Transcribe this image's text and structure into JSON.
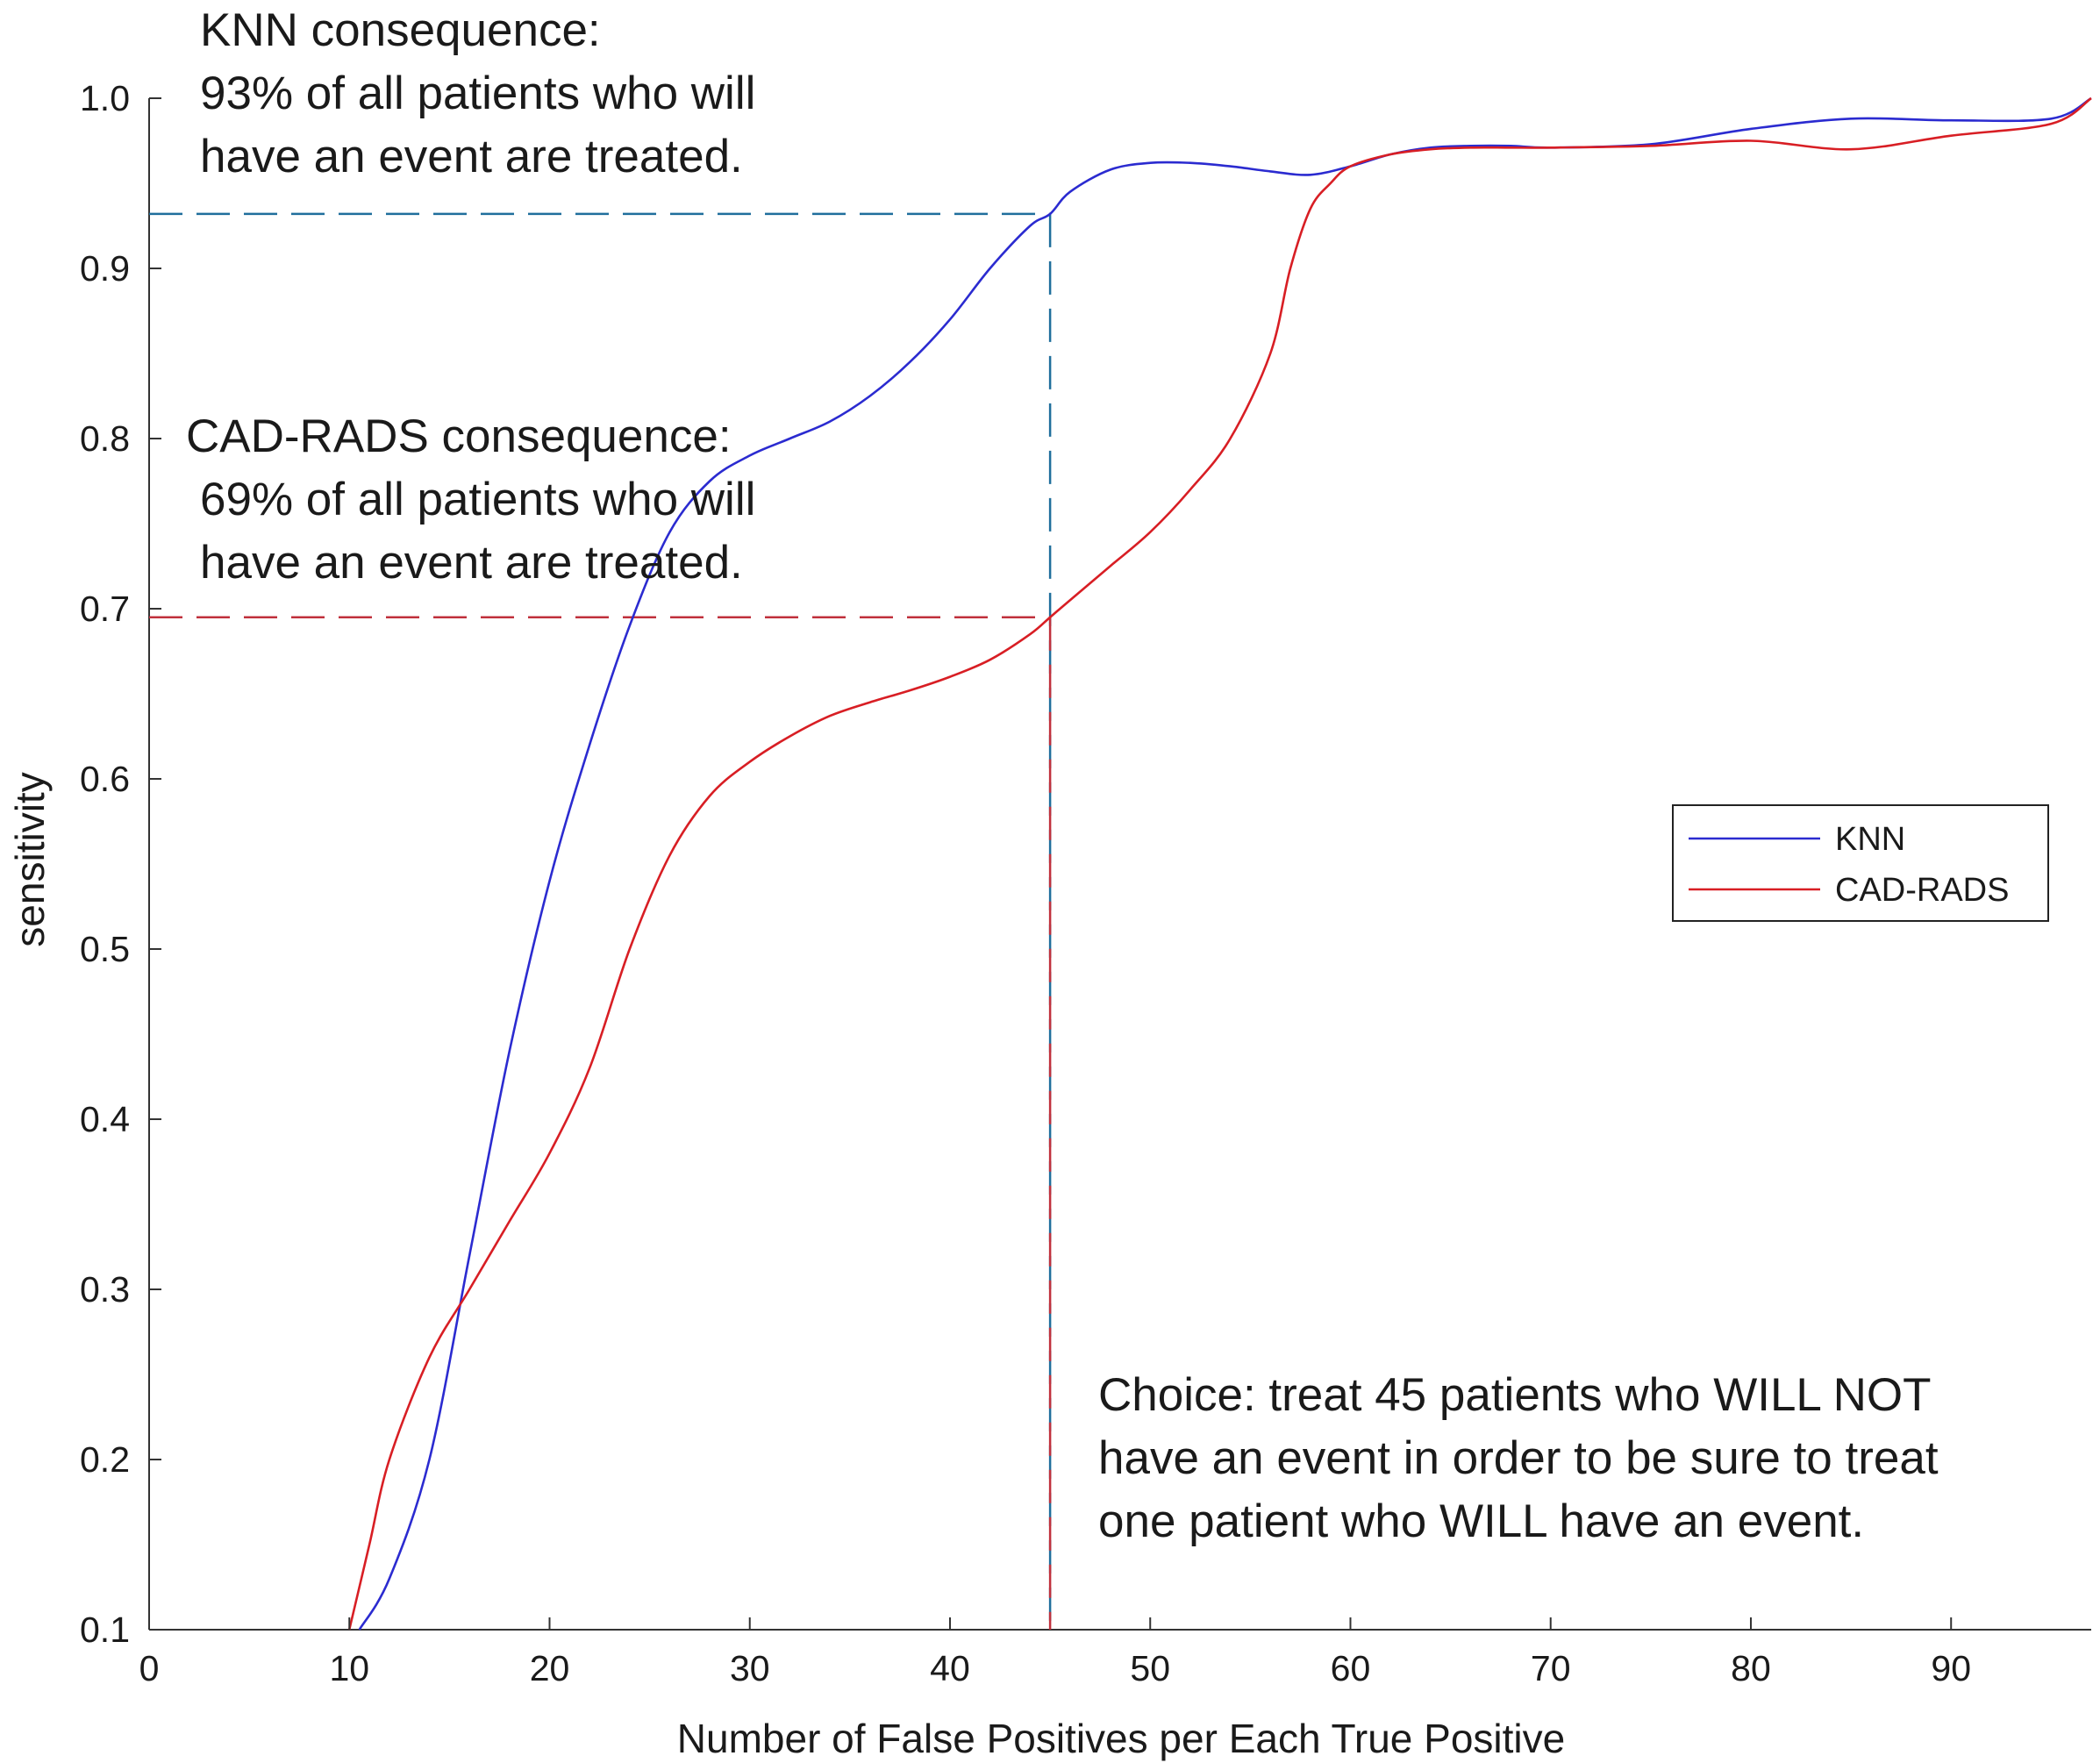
{
  "chart_data": {
    "type": "line",
    "title": "",
    "xlabel": "Number of False Positives per Each True Positive",
    "ylabel": "sensitivity",
    "xlim": [
      0,
      97
    ],
    "ylim": [
      0.1,
      1.0
    ],
    "x_ticks": [
      0,
      10,
      20,
      30,
      40,
      50,
      60,
      70,
      80,
      90
    ],
    "y_ticks": [
      0.1,
      0.2,
      0.3,
      0.4,
      0.5,
      0.6,
      0.7,
      0.8,
      0.9,
      1.0
    ],
    "x_tick_labels": [
      "0",
      "10",
      "20",
      "30",
      "40",
      "50",
      "60",
      "70",
      "80",
      "90"
    ],
    "y_tick_labels": [
      "0.1",
      "0.2",
      "0.3",
      "0.4",
      "0.5",
      "0.6",
      "0.7",
      "0.8",
      "0.9",
      "1.0"
    ],
    "grid": false,
    "legend_position": "right",
    "series": [
      {
        "name": "KNN",
        "color": "#2b2bd0",
        "x": [
          10.5,
          12,
          14,
          16,
          18,
          20,
          22,
          24,
          26,
          28,
          30,
          32,
          34,
          36,
          38,
          40,
          42,
          44,
          45,
          46,
          48,
          50,
          52,
          54,
          56,
          58,
          60,
          62,
          64,
          66,
          68,
          70,
          75,
          80,
          85,
          90,
          95,
          97
        ],
        "y": [
          0.1,
          0.13,
          0.2,
          0.32,
          0.44,
          0.54,
          0.62,
          0.69,
          0.745,
          0.775,
          0.79,
          0.8,
          0.81,
          0.825,
          0.845,
          0.87,
          0.9,
          0.925,
          0.932,
          0.945,
          0.958,
          0.962,
          0.962,
          0.96,
          0.957,
          0.955,
          0.96,
          0.967,
          0.971,
          0.972,
          0.972,
          0.971,
          0.973,
          0.982,
          0.988,
          0.987,
          0.988,
          1.0
        ]
      },
      {
        "name": "CAD-RADS",
        "color": "#d81e24",
        "x": [
          10,
          11,
          12,
          14,
          16,
          18,
          20,
          22,
          24,
          26,
          28,
          30,
          32,
          34,
          36,
          38,
          40,
          42,
          44,
          45,
          46,
          48,
          50,
          52,
          54,
          56,
          57,
          58,
          59,
          60,
          62,
          64,
          66,
          68,
          70,
          75,
          80,
          85,
          90,
          95,
          97
        ],
        "y": [
          0.1,
          0.15,
          0.2,
          0.26,
          0.3,
          0.34,
          0.38,
          0.43,
          0.5,
          0.555,
          0.59,
          0.61,
          0.625,
          0.637,
          0.645,
          0.652,
          0.66,
          0.67,
          0.685,
          0.695,
          0.705,
          0.725,
          0.745,
          0.77,
          0.8,
          0.85,
          0.9,
          0.935,
          0.95,
          0.96,
          0.967,
          0.97,
          0.971,
          0.971,
          0.971,
          0.972,
          0.975,
          0.97,
          0.978,
          0.985,
          1.0
        ]
      }
    ],
    "reference_lines": [
      {
        "label": "knn-at-45",
        "color": "#1f6e9c",
        "x": 45,
        "y": 0.932
      },
      {
        "label": "cadrads-at-45",
        "color": "#c0303c",
        "x": 45,
        "y": 0.695
      }
    ],
    "annotations": {
      "knn": [
        "KNN consequence:",
        "93% of all patients who will",
        "have an event are treated."
      ],
      "cadrads": [
        "CAD-RADS consequence:",
        "69% of all patients who will",
        "have an event are treated."
      ],
      "choice": [
        "Choice: treat 45 patients who WILL NOT",
        "have an event in order to be sure to treat",
        "one patient who WILL have an event."
      ]
    }
  }
}
